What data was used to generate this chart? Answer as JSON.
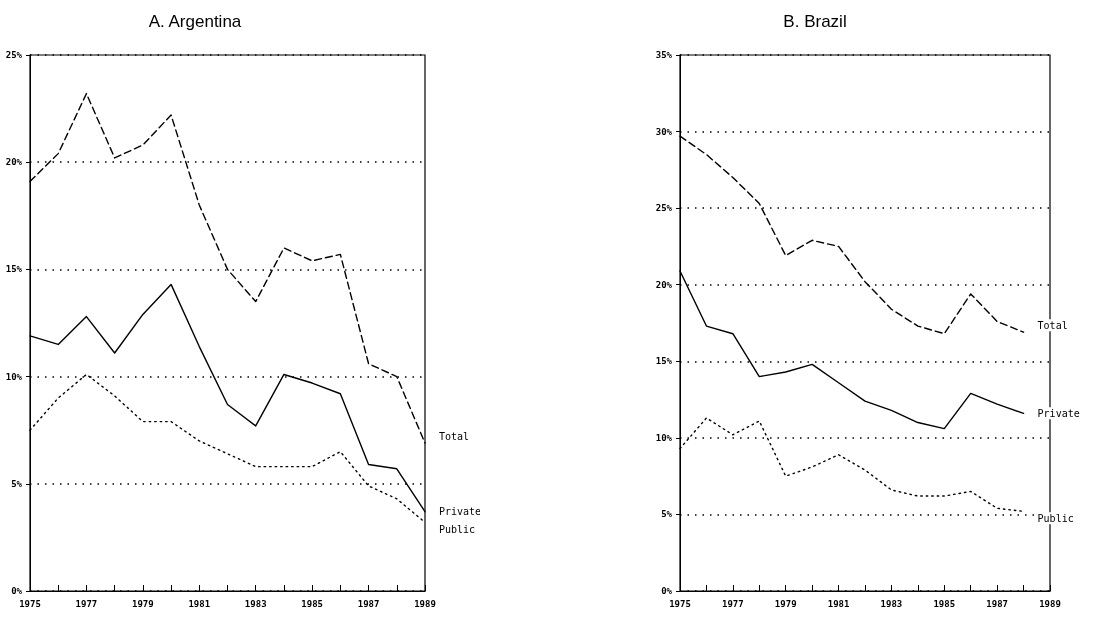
{
  "chart_data": [
    {
      "type": "line",
      "title": "A. Argentina",
      "x": [
        1975,
        1976,
        1977,
        1978,
        1979,
        1980,
        1981,
        1982,
        1983,
        1984,
        1985,
        1986,
        1987,
        1988,
        1989
      ],
      "series": [
        {
          "name": "Total",
          "color": "#000000",
          "line_style": "dashed",
          "values": [
            19.1,
            20.4,
            23.2,
            20.2,
            20.8,
            22.2,
            18.0,
            15.0,
            13.5,
            16.0,
            15.4,
            15.7,
            10.6,
            10.0,
            6.9
          ]
        },
        {
          "name": "Private",
          "color": "#000000",
          "line_style": "solid",
          "values": [
            11.9,
            11.5,
            12.8,
            11.1,
            12.9,
            14.3,
            11.4,
            8.7,
            7.7,
            10.1,
            9.7,
            9.2,
            5.9,
            5.7,
            3.7
          ]
        },
        {
          "name": "Public",
          "color": "#000000",
          "line_style": "dotted",
          "values": [
            7.5,
            9.0,
            10.1,
            9.1,
            7.9,
            7.9,
            7.0,
            6.4,
            5.8,
            5.8,
            5.8,
            6.5,
            4.9,
            4.3,
            3.2
          ]
        }
      ],
      "xlim": [
        1975,
        1989
      ],
      "xticks": [
        1975,
        {
          "value": 1976,
          "label": null
        },
        1977,
        {
          "value": 1978,
          "label": null
        },
        1979,
        {
          "value": 1980,
          "label": null
        },
        1981,
        {
          "value": 1982,
          "label": null
        },
        1983,
        {
          "value": 1984,
          "label": null
        },
        1985,
        {
          "value": 1986,
          "label": null
        },
        1987,
        {
          "value": 1988,
          "label": null
        },
        1989
      ],
      "ylim": [
        0,
        25
      ],
      "yticks": [
        {
          "value": 0,
          "label": "0%"
        },
        {
          "value": 5,
          "label": "5%"
        },
        {
          "value": 10,
          "label": "10%"
        },
        {
          "value": 15,
          "label": "15%"
        },
        {
          "value": 20,
          "label": "20%"
        },
        {
          "value": 25,
          "label": "25%"
        }
      ],
      "grid": "y",
      "legend": false,
      "marker": "none"
    },
    {
      "type": "line",
      "title": "B. Brazil",
      "x": [
        1975,
        1976,
        1977,
        1978,
        1979,
        1980,
        1981,
        1982,
        1983,
        1984,
        1985,
        1986,
        1987,
        1988
      ],
      "series": [
        {
          "name": "Total",
          "color": "#000000",
          "line_style": "dashed",
          "values": [
            29.7,
            28.5,
            27.0,
            25.3,
            21.9,
            22.9,
            22.5,
            20.2,
            18.4,
            17.3,
            16.8,
            19.4,
            17.6,
            16.9
          ]
        },
        {
          "name": "Private",
          "color": "#000000",
          "line_style": "solid",
          "values": [
            20.9,
            17.3,
            16.8,
            14.0,
            14.3,
            14.8,
            13.6,
            12.4,
            11.8,
            11.0,
            10.6,
            12.9,
            12.2,
            11.6
          ]
        },
        {
          "name": "Public",
          "color": "#000000",
          "line_style": "dotted",
          "values": [
            9.3,
            11.3,
            10.2,
            11.1,
            7.5,
            8.1,
            8.9,
            7.9,
            6.6,
            6.2,
            6.2,
            6.5,
            5.4,
            5.2
          ]
        }
      ],
      "xlim": [
        1975,
        1989
      ],
      "xticks": [
        1975,
        {
          "value": 1976,
          "label": null
        },
        1977,
        {
          "value": 1978,
          "label": null
        },
        1979,
        {
          "value": 1980,
          "label": null
        },
        1981,
        {
          "value": 1982,
          "label": null
        },
        1983,
        {
          "value": 1984,
          "label": null
        },
        1985,
        {
          "value": 1986,
          "label": null
        },
        1987,
        {
          "value": 1988,
          "label": null
        },
        1989
      ],
      "ylim": [
        0,
        35
      ],
      "yticks": [
        {
          "value": 0,
          "label": "0%"
        },
        {
          "value": 5,
          "label": "5%"
        },
        {
          "value": 10,
          "label": "10%"
        },
        {
          "value": 15,
          "label": "15%"
        },
        {
          "value": 20,
          "label": "20%"
        },
        {
          "value": 25,
          "label": "25%"
        },
        {
          "value": 30,
          "label": "30%"
        },
        {
          "value": 35,
          "label": "35%"
        }
      ],
      "grid": "y",
      "legend": false,
      "marker": "none"
    }
  ]
}
